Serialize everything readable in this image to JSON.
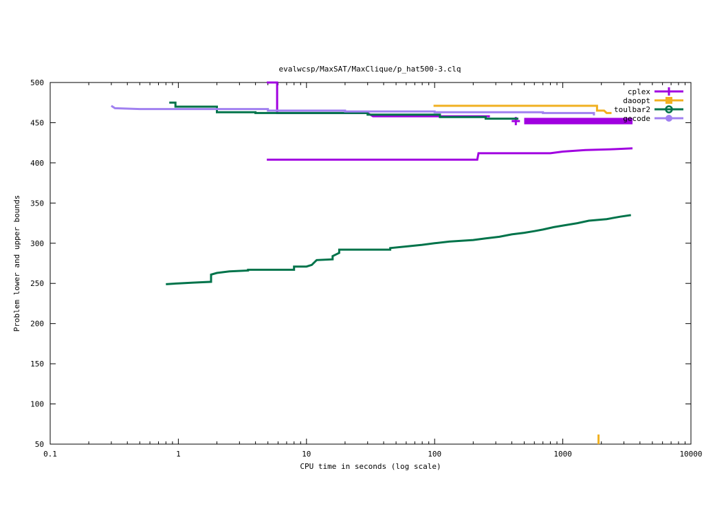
{
  "chart_data": {
    "type": "line",
    "title": "evalwcsp/MaxSAT/MaxClique/p_hat500-3.clq",
    "xlabel": "CPU time in seconds (log scale)",
    "ylabel": "Problem lower and upper bounds",
    "x_scale": "log",
    "xlim": [
      0.1,
      10000
    ],
    "ylim": [
      50,
      500
    ],
    "x_ticks": [
      0.1,
      1,
      10,
      100,
      1000,
      10000
    ],
    "x_tick_labels": [
      "0.1",
      "1",
      "10",
      "100",
      "1000",
      "10000"
    ],
    "y_ticks": [
      50,
      100,
      150,
      200,
      250,
      300,
      350,
      400,
      450,
      500
    ],
    "y_tick_labels": [
      "50",
      "100",
      "150",
      "200",
      "250",
      "300",
      "350",
      "400",
      "450",
      "500"
    ],
    "grid": false,
    "legend_position": "top-right",
    "series": [
      {
        "name": "cplex",
        "color": "#a000e0",
        "marker": "plus",
        "lines": [
          [
            [
              4.9,
              500
            ],
            [
              5.9,
              500
            ],
            [
              5.9,
              462
            ],
            [
              30,
              462
            ],
            [
              33,
              458
            ],
            [
              270,
              458
            ]
          ],
          [
            [
              4.9,
              404
            ],
            [
              215,
              404
            ],
            [
              220,
              412
            ],
            [
              800,
              412
            ],
            [
              1000,
              414
            ],
            [
              1500,
              416
            ],
            [
              2500,
              417
            ],
            [
              3500,
              418
            ]
          ]
        ],
        "bands": [
          [
            500,
            3500,
            448,
            456
          ]
        ],
        "markers": [
          [
            430,
            452
          ]
        ]
      },
      {
        "name": "daoopt",
        "color": "#f0b020",
        "marker": "square",
        "lines": [
          [
            [
              98,
              471
            ],
            [
              1850,
              471
            ],
            [
              1850,
              465
            ],
            [
              2100,
              465
            ],
            [
              2200,
              462
            ],
            [
              2400,
              462
            ]
          ],
          [
            [
              1900,
              62
            ],
            [
              1900,
              50
            ]
          ]
        ]
      },
      {
        "name": "toulbar2",
        "color": "#00734a",
        "marker": "circle",
        "lines": [
          [
            [
              0.85,
              475
            ],
            [
              0.95,
              475
            ],
            [
              0.95,
              470
            ],
            [
              2,
              470
            ],
            [
              2,
              463
            ],
            [
              4,
              463
            ],
            [
              4,
              462
            ],
            [
              30,
              462
            ],
            [
              30,
              460
            ],
            [
              110,
              460
            ],
            [
              110,
              457
            ],
            [
              250,
              457
            ],
            [
              250,
              455
            ],
            [
              450,
              455
            ]
          ],
          [
            [
              0.8,
              249
            ],
            [
              1,
              250
            ],
            [
              1.3,
              251
            ],
            [
              1.8,
              252
            ],
            [
              1.8,
              261
            ],
            [
              2,
              263
            ],
            [
              2.5,
              265
            ],
            [
              3.5,
              266
            ],
            [
              3.5,
              267
            ],
            [
              8,
              267
            ],
            [
              8,
              271
            ],
            [
              10,
              271
            ],
            [
              11,
              273
            ],
            [
              12,
              279
            ],
            [
              16,
              280
            ],
            [
              16,
              284
            ],
            [
              18,
              288
            ],
            [
              18,
              292
            ],
            [
              45,
              292
            ],
            [
              45,
              294
            ],
            [
              60,
              296
            ],
            [
              80,
              298
            ],
            [
              100,
              300
            ],
            [
              130,
              302
            ],
            [
              200,
              304
            ],
            [
              250,
              306
            ],
            [
              320,
              308
            ],
            [
              400,
              311
            ],
            [
              500,
              313
            ],
            [
              600,
              315
            ],
            [
              700,
              317
            ],
            [
              850,
              320
            ],
            [
              1000,
              322
            ],
            [
              1300,
              325
            ],
            [
              1600,
              328
            ],
            [
              2200,
              330
            ],
            [
              2800,
              333
            ],
            [
              3400,
              335
            ]
          ]
        ]
      },
      {
        "name": "gecode",
        "color": "#a080f0",
        "marker": "circle-filled",
        "lines": [
          [
            [
              0.3,
              471
            ],
            [
              0.32,
              468
            ],
            [
              0.5,
              467
            ],
            [
              5,
              467
            ],
            [
              5,
              465
            ],
            [
              20,
              465
            ],
            [
              20,
              464
            ],
            [
              100,
              464
            ],
            [
              100,
              463
            ],
            [
              700,
              463
            ],
            [
              700,
              462
            ],
            [
              1750,
              462
            ],
            [
              1750,
              459
            ]
          ]
        ]
      }
    ]
  }
}
